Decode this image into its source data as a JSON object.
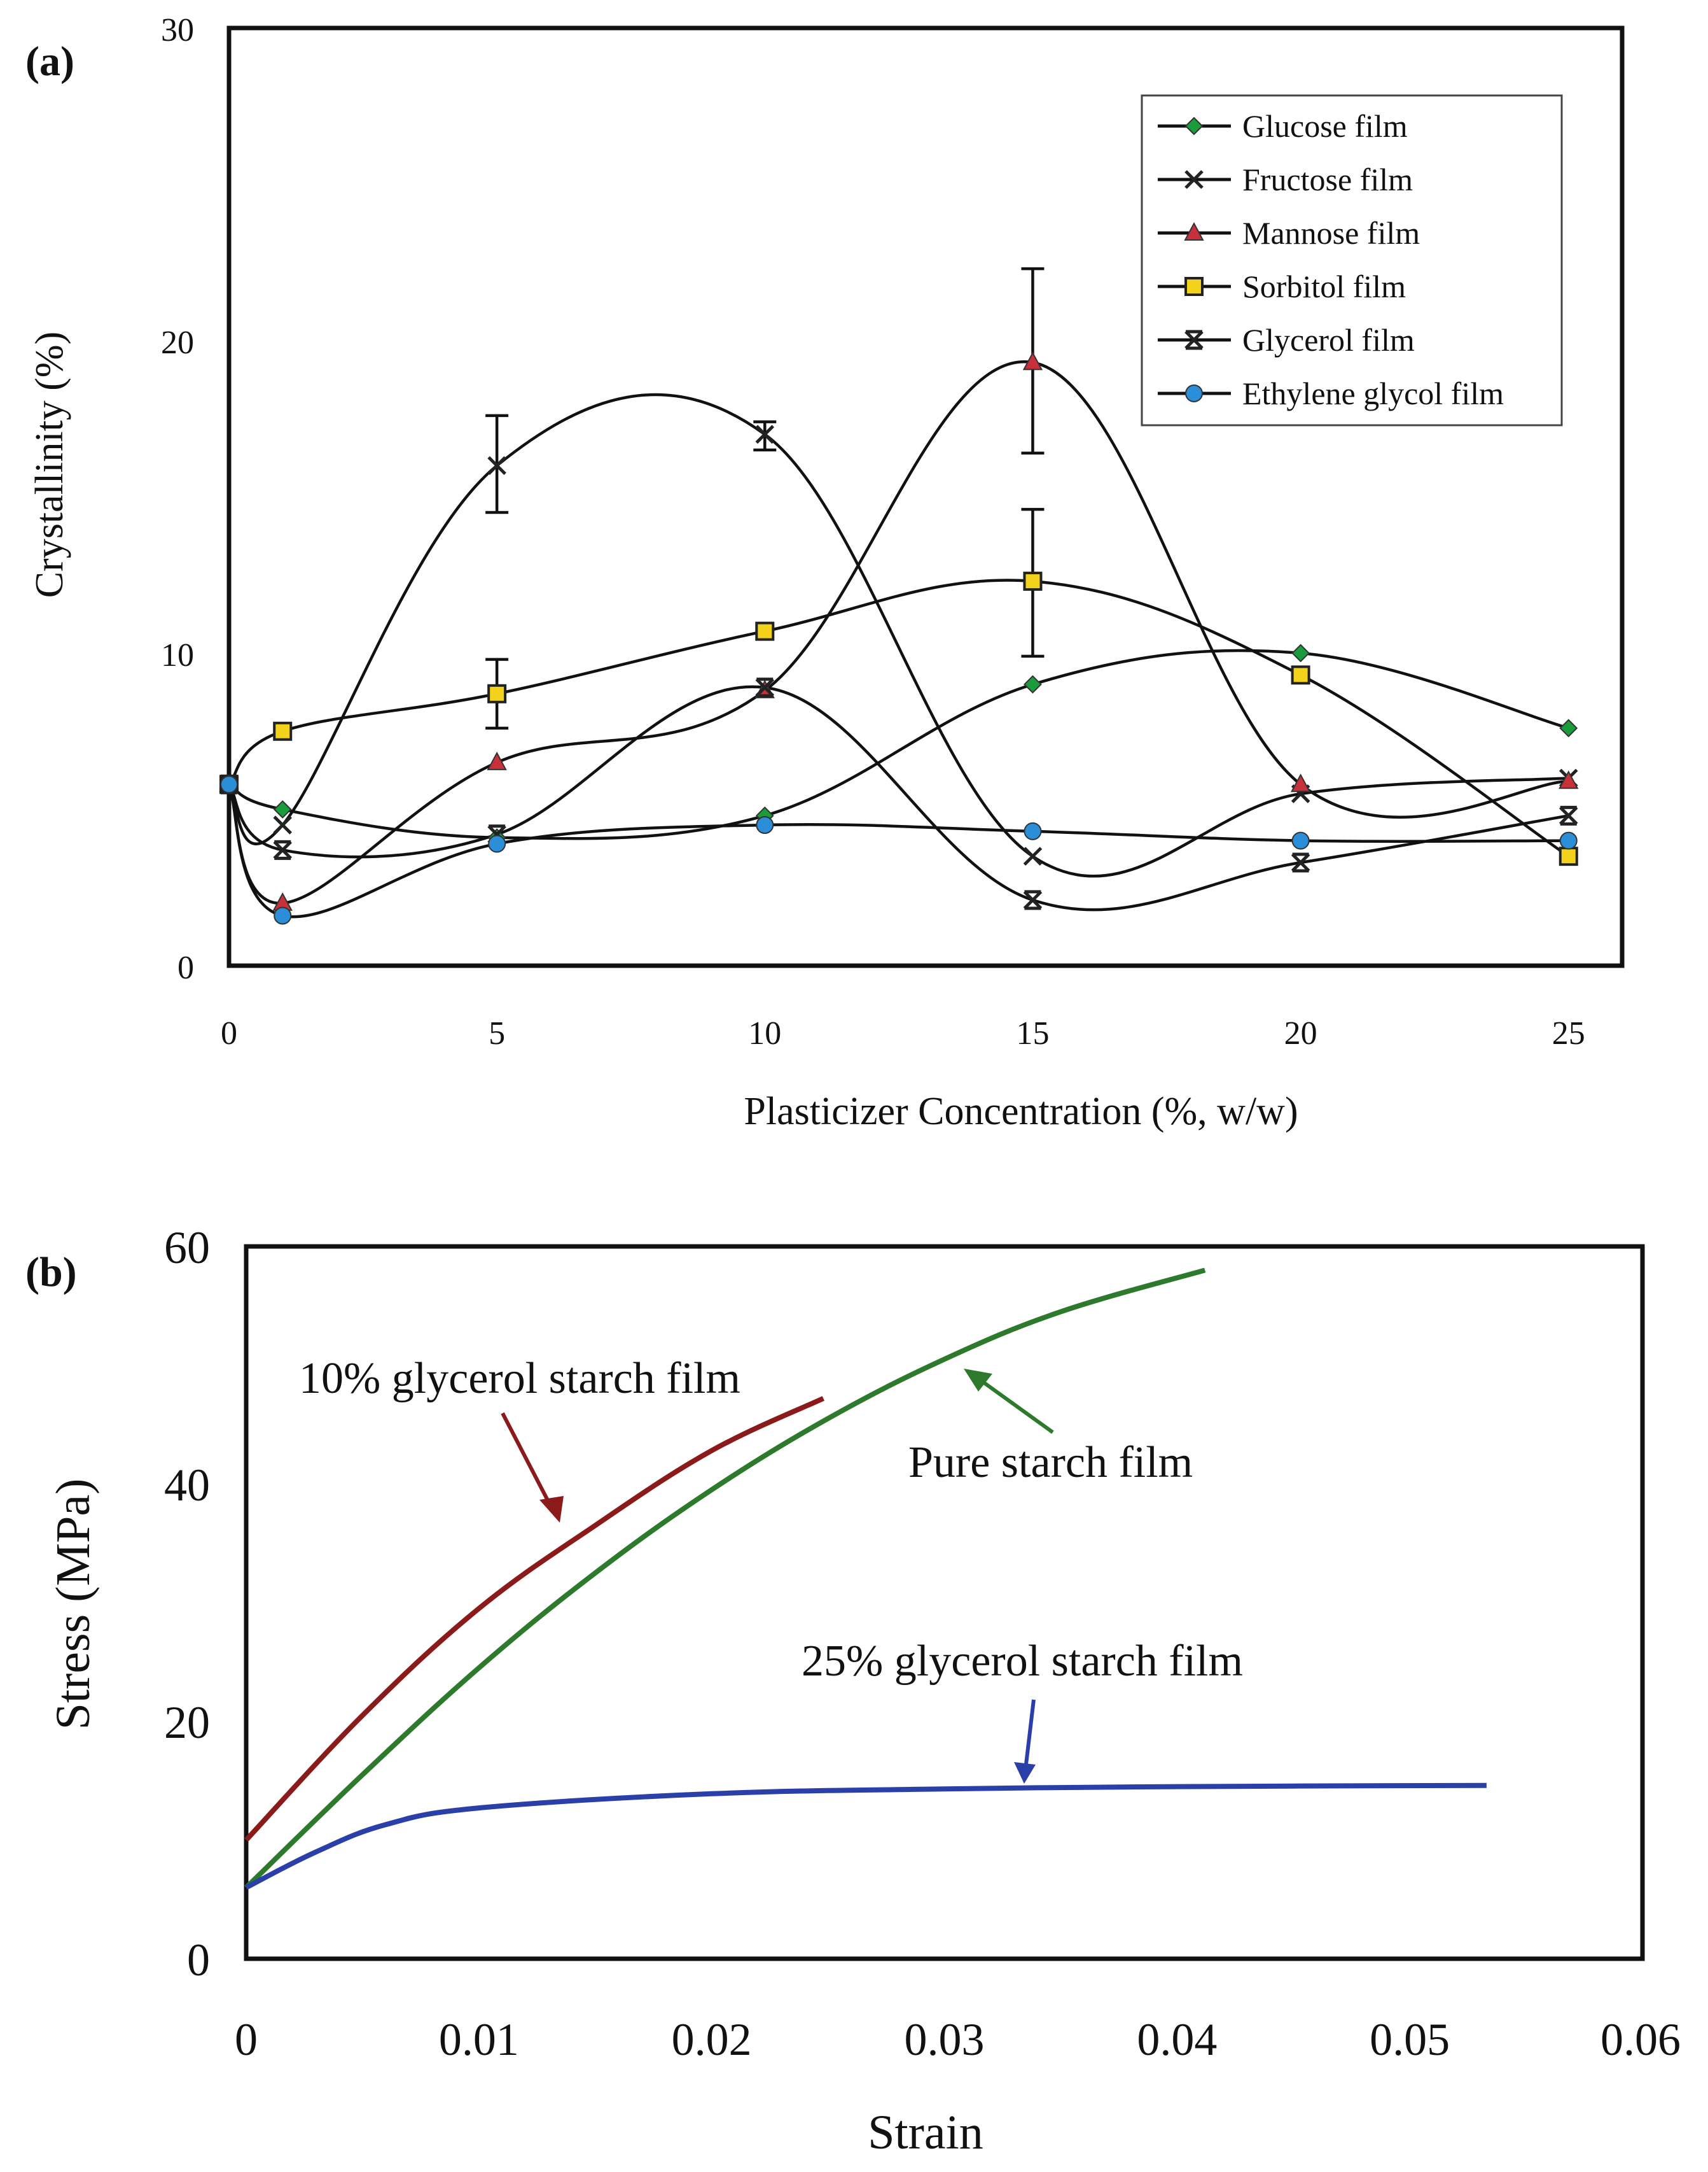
{
  "chart_data": [
    {
      "panel_label": "(a)",
      "type": "line",
      "title": "",
      "xlabel": "Plasticizer Concentration (%, w/w)",
      "ylabel": "Crystallinity (%)",
      "xlim": [
        0,
        26
      ],
      "ylim": [
        0,
        30
      ],
      "xticks": [
        0,
        5,
        10,
        15,
        20,
        25
      ],
      "yticks": [
        0,
        10,
        20,
        30
      ],
      "xtick_labels": [
        "0",
        "5",
        "10",
        "15",
        "20",
        "25"
      ],
      "ytick_labels": [
        "0",
        "10",
        "20",
        "30"
      ],
      "grid": false,
      "legend_position": "top-right",
      "series": [
        {
          "name": "Glucose film",
          "marker": "diamond",
          "color": "#1a9c3c",
          "x": [
            0,
            1,
            5,
            10,
            15,
            20,
            25
          ],
          "y": [
            5.8,
            5.0,
            4.1,
            4.8,
            9.0,
            10.0,
            7.6
          ]
        },
        {
          "name": "Fructose film",
          "marker": "x",
          "color": "#222222",
          "x": [
            0,
            1,
            5,
            10,
            15,
            20,
            25
          ],
          "y": [
            5.8,
            4.5,
            16.0,
            17.0,
            3.5,
            5.5,
            6.0
          ],
          "error_bars": [
            {
              "x": 5,
              "low": 14.5,
              "high": 17.6
            },
            {
              "x": 10,
              "low": 16.5,
              "high": 17.4
            }
          ]
        },
        {
          "name": "Mannose film",
          "marker": "triangle",
          "color": "#c8313a",
          "x": [
            0,
            1,
            5,
            10,
            15,
            20,
            25
          ],
          "y": [
            5.8,
            2.0,
            6.5,
            8.8,
            19.3,
            5.8,
            5.9
          ],
          "error_bars": [
            {
              "x": 15,
              "low": 16.4,
              "high": 22.3
            }
          ]
        },
        {
          "name": "Sorbitol film",
          "marker": "square",
          "color": "#f2d21a",
          "x": [
            0,
            1,
            5,
            10,
            15,
            20,
            25
          ],
          "y": [
            5.8,
            7.5,
            8.7,
            10.7,
            12.3,
            9.3,
            3.5
          ],
          "error_bars": [
            {
              "x": 5,
              "low": 7.6,
              "high": 9.8
            },
            {
              "x": 15,
              "low": 9.9,
              "high": 14.6
            }
          ]
        },
        {
          "name": "Glycerol film",
          "marker": "asterisk",
          "color": "#222222",
          "x": [
            0,
            1,
            5,
            10,
            15,
            20,
            25
          ],
          "y": [
            5.8,
            3.7,
            4.2,
            8.9,
            2.1,
            3.3,
            4.8
          ]
        },
        {
          "name": "Ethylene glycol film",
          "marker": "circle",
          "color": "#2a8fd8",
          "x": [
            0,
            1,
            5,
            10,
            15,
            20,
            25
          ],
          "y": [
            5.8,
            1.6,
            3.9,
            4.5,
            4.3,
            4.0,
            4.0
          ]
        }
      ]
    },
    {
      "panel_label": "(b)",
      "type": "line",
      "title": "",
      "xlabel": "Strain",
      "ylabel": "Stress (MPa)",
      "xlim": [
        0,
        0.06
      ],
      "ylim": [
        0,
        60
      ],
      "xticks": [
        0,
        0.01,
        0.02,
        0.03,
        0.04,
        0.05,
        0.06
      ],
      "yticks": [
        0,
        20,
        40,
        60
      ],
      "xtick_labels": [
        "0",
        "0.01",
        "0.02",
        "0.03",
        "0.04",
        "0.05",
        "0.06"
      ],
      "ytick_labels": [
        "0",
        "20",
        "40",
        "60"
      ],
      "grid": false,
      "series": [
        {
          "name": "10% glycerol starch film",
          "color": "#8b1a1a",
          "x": [
            0,
            0.005,
            0.01,
            0.015,
            0.02,
            0.0248
          ],
          "y": [
            10.0,
            20.5,
            29.5,
            36.5,
            42.8,
            47.2
          ]
        },
        {
          "name": "Pure starch film",
          "color": "#2d7a2d",
          "x": [
            0,
            0.005,
            0.01,
            0.015,
            0.02,
            0.025,
            0.03,
            0.035,
            0.0412
          ],
          "y": [
            6.0,
            15.5,
            24.5,
            32.5,
            39.5,
            45.5,
            50.5,
            54.5,
            58.0
          ]
        },
        {
          "name": "25% glycerol starch film",
          "color": "#2b3fa8",
          "x": [
            0,
            0.003,
            0.006,
            0.01,
            0.02,
            0.03,
            0.04,
            0.0533
          ],
          "y": [
            6.0,
            9.0,
            11.3,
            12.7,
            13.9,
            14.3,
            14.5,
            14.6
          ]
        }
      ],
      "annotations": [
        {
          "text": "10% glycerol starch film",
          "series": "10% glycerol starch film"
        },
        {
          "text": "Pure starch film",
          "series": "Pure starch film"
        },
        {
          "text": "25% glycerol starch film",
          "series": "25% glycerol starch film"
        }
      ]
    }
  ]
}
